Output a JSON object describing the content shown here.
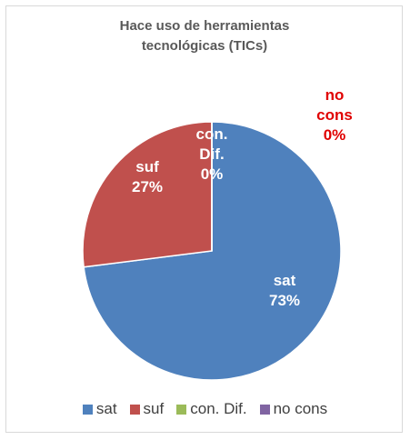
{
  "chart_data": {
    "type": "pie",
    "title": "Hace uso de herramientas tecnológicas (TICs)",
    "categories": [
      "sat",
      "suf",
      "con. Dif.",
      "no cons"
    ],
    "values": [
      73,
      27,
      0,
      0
    ],
    "value_labels": [
      "73%",
      "27%",
      "0%",
      "0%"
    ],
    "colors": [
      "#4f81bd",
      "#c0504d",
      "#9bbb59",
      "#8064a2"
    ],
    "legend": "bottom"
  }
}
